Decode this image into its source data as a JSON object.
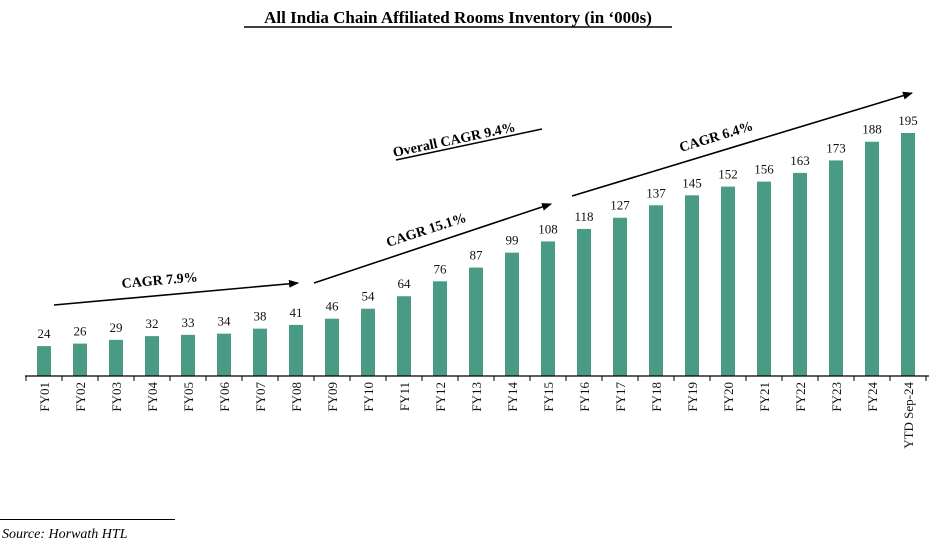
{
  "chart_data": {
    "type": "bar",
    "title": "All India Chain Affiliated Rooms Inventory (in ‘000s)",
    "xlabel": "",
    "ylabel": "",
    "categories": [
      "FY01",
      "FY02",
      "FY03",
      "FY04",
      "FY05",
      "FY06",
      "FY07",
      "FY08",
      "FY09",
      "FY10",
      "FY11",
      "FY12",
      "FY13",
      "FY14",
      "FY15",
      "FY16",
      "FY17",
      "FY18",
      "FY19",
      "FY20",
      "FY21",
      "FY22",
      "FY23",
      "FY24",
      "YTD Sep-24"
    ],
    "values": [
      24,
      26,
      29,
      32,
      33,
      34,
      38,
      41,
      46,
      54,
      64,
      76,
      87,
      99,
      108,
      118,
      127,
      137,
      145,
      152,
      156,
      163,
      173,
      188,
      195
    ],
    "ylim": [
      0,
      200
    ],
    "grid": false,
    "bar_color": "#4a9b85",
    "data_labels": true,
    "annotations": [
      {
        "text": "CAGR 7.9%",
        "from": "FY01",
        "to": "FY08",
        "arrow": true
      },
      {
        "text": "CAGR 15.1%",
        "from": "FY09",
        "to": "FY15",
        "arrow": true
      },
      {
        "text": "CAGR 6.4%",
        "from": "FY16",
        "to": "YTD Sep-24",
        "arrow": true
      },
      {
        "text": "Overall CAGR 9.4%",
        "underline": true
      }
    ]
  },
  "footer": {
    "source": "Source: Horwath HTL"
  }
}
